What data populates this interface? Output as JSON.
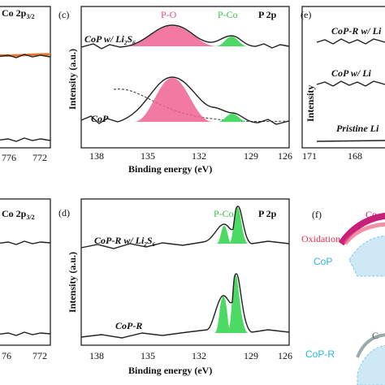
{
  "left_top": {
    "label": "Co 2p",
    "label_sub": "3/2",
    "ticks": [
      "776",
      "772"
    ]
  },
  "left_bottom": {
    "label": "Co 2p",
    "label_sub": "3/2",
    "ticks": [
      "76",
      "772"
    ]
  },
  "panel_c": {
    "tag": "(c)",
    "peak1": "P-O",
    "peak2": "P-Co",
    "region": "P 2p",
    "ylabel": "Intensity (a.u.)",
    "xlabel": "Binding energy (eV)",
    "ticks": [
      "138",
      "135",
      "132",
      "129",
      "126"
    ],
    "sample1": "CoP w/ Li",
    "sample1_s1": "2",
    "sample1_mid": "S",
    "sample1_s2": "6",
    "sample2": "CoP"
  },
  "panel_d": {
    "tag": "(d)",
    "peak": "P-Co",
    "region": "P 2p",
    "ylabel": "Intensity (a.u.)",
    "xlabel": "Binding energy (eV)",
    "ticks": [
      "138",
      "135",
      "132",
      "129",
      "126"
    ],
    "sample1": "CoP-R w/ Li",
    "sample1_s1": "2",
    "sample1_mid": "S",
    "sample1_s2": "6",
    "sample2": "CoP-R"
  },
  "panel_e": {
    "tag": "(e)",
    "ylabel": "Intensity",
    "sample1": "CoP-R w/ Li",
    "sample2": "CoP w/ Li",
    "sample3": "Pristine Li",
    "ticks": [
      "171",
      "168"
    ]
  },
  "panel_f": {
    "tag": "(f)",
    "top": "Co-",
    "oxidation": "Oxidation",
    "cop": "CoP",
    "c": "C",
    "copr": "CoP-R"
  }
}
